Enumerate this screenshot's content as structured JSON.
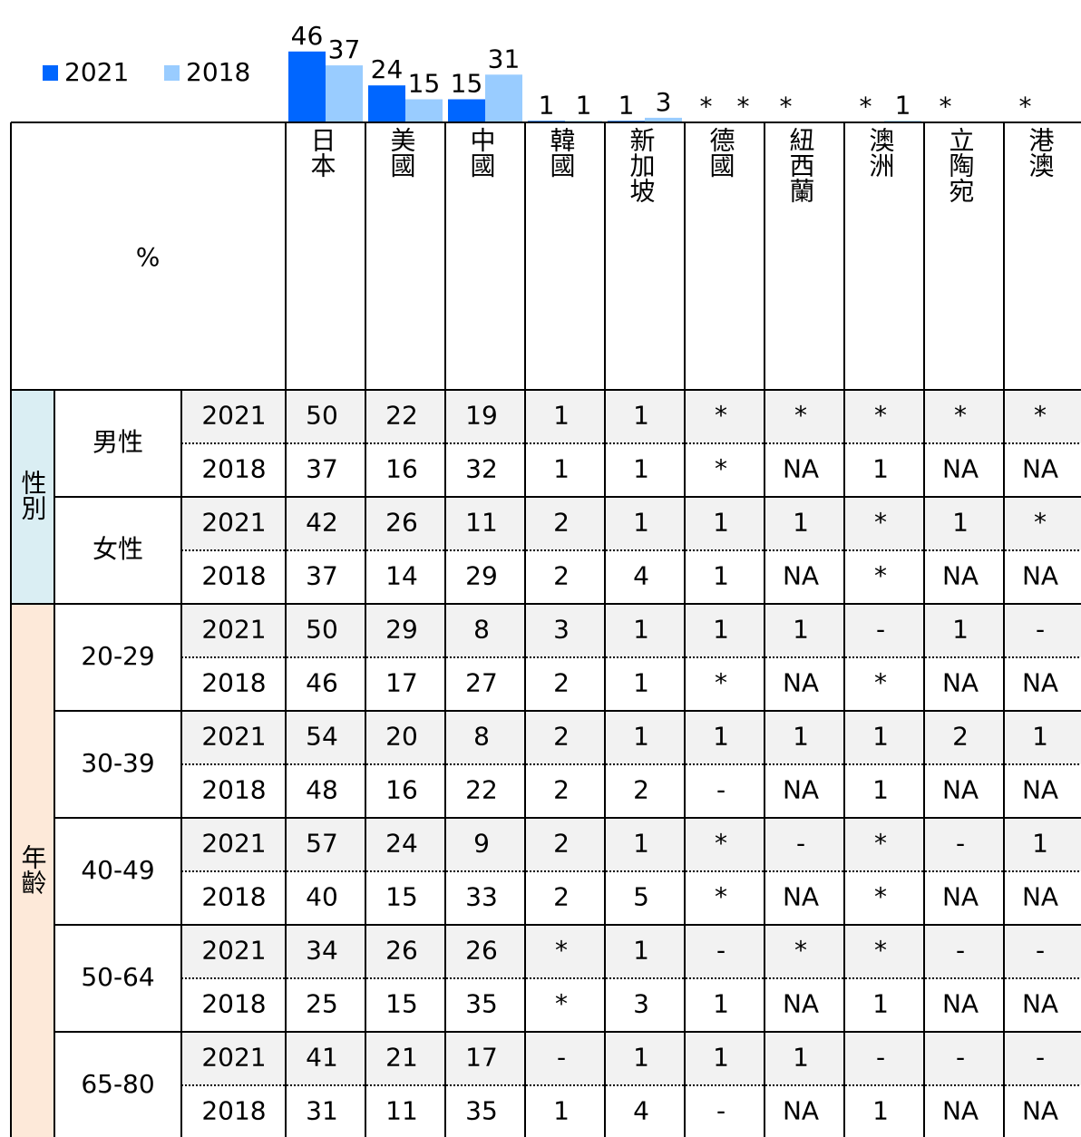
{
  "chart_data": {
    "type": "bar",
    "categories": [
      "日本",
      "美國",
      "中國",
      "韓國",
      "新加坡",
      "德國",
      "紐西蘭",
      "澳洲",
      "立陶宛",
      "港澳"
    ],
    "series": [
      {
        "name": "2021",
        "color": "#0066ff",
        "values": [
          46,
          24,
          15,
          1,
          1,
          null,
          null,
          null,
          null,
          null
        ],
        "value_labels": [
          "46",
          "24",
          "15",
          "1",
          "1",
          "*",
          "*",
          "*",
          "*",
          "*"
        ]
      },
      {
        "name": "2018",
        "color": "#99ccff",
        "values": [
          37,
          15,
          31,
          1,
          3,
          null,
          null,
          1,
          null,
          null
        ],
        "value_labels": [
          "37",
          "15",
          "31",
          "1",
          "3",
          "*",
          null,
          "1",
          null,
          null
        ]
      }
    ]
  },
  "table": {
    "corner": "%",
    "groups": [
      {
        "label": "性別",
        "color": "#daeef3",
        "subgroups": [
          {
            "label": "男性",
            "rows": [
              {
                "year": "2021",
                "cells": [
                  "50",
                  "22",
                  "19",
                  "1",
                  "1",
                  "*",
                  "*",
                  "*",
                  "*",
                  "*"
                ]
              },
              {
                "year": "2018",
                "cells": [
                  "37",
                  "16",
                  "32",
                  "1",
                  "1",
                  "*",
                  "NA",
                  "1",
                  "NA",
                  "NA"
                ]
              }
            ]
          },
          {
            "label": "女性",
            "rows": [
              {
                "year": "2021",
                "cells": [
                  "42",
                  "26",
                  "11",
                  "2",
                  "1",
                  "1",
                  "1",
                  "*",
                  "1",
                  "*"
                ]
              },
              {
                "year": "2018",
                "cells": [
                  "37",
                  "14",
                  "29",
                  "2",
                  "4",
                  "1",
                  "NA",
                  "*",
                  "NA",
                  "NA"
                ]
              }
            ]
          }
        ]
      },
      {
        "label": "年齡",
        "color": "#fde9d9",
        "subgroups": [
          {
            "label": "20-29",
            "rows": [
              {
                "year": "2021",
                "cells": [
                  "50",
                  "29",
                  "8",
                  "3",
                  "1",
                  "1",
                  "1",
                  "-",
                  "1",
                  "-"
                ]
              },
              {
                "year": "2018",
                "cells": [
                  "46",
                  "17",
                  "27",
                  "2",
                  "1",
                  "*",
                  "NA",
                  "*",
                  "NA",
                  "NA"
                ]
              }
            ]
          },
          {
            "label": "30-39",
            "rows": [
              {
                "year": "2021",
                "cells": [
                  "54",
                  "20",
                  "8",
                  "2",
                  "1",
                  "1",
                  "1",
                  "1",
                  "2",
                  "1"
                ]
              },
              {
                "year": "2018",
                "cells": [
                  "48",
                  "16",
                  "22",
                  "2",
                  "2",
                  "-",
                  "NA",
                  "1",
                  "NA",
                  "NA"
                ]
              }
            ]
          },
          {
            "label": "40-49",
            "rows": [
              {
                "year": "2021",
                "cells": [
                  "57",
                  "24",
                  "9",
                  "2",
                  "1",
                  "*",
                  "-",
                  "*",
                  "-",
                  "1"
                ]
              },
              {
                "year": "2018",
                "cells": [
                  "40",
                  "15",
                  "33",
                  "2",
                  "5",
                  "*",
                  "NA",
                  "*",
                  "NA",
                  "NA"
                ]
              }
            ]
          },
          {
            "label": "50-64",
            "rows": [
              {
                "year": "2021",
                "cells": [
                  "34",
                  "26",
                  "26",
                  "*",
                  "1",
                  "-",
                  "*",
                  "*",
                  "-",
                  "-"
                ]
              },
              {
                "year": "2018",
                "cells": [
                  "25",
                  "15",
                  "35",
                  "*",
                  "3",
                  "1",
                  "NA",
                  "1",
                  "NA",
                  "NA"
                ]
              }
            ]
          },
          {
            "label": "65-80",
            "rows": [
              {
                "year": "2021",
                "cells": [
                  "41",
                  "21",
                  "17",
                  "-",
                  "1",
                  "1",
                  "1",
                  "-",
                  "-",
                  "-"
                ]
              },
              {
                "year": "2018",
                "cells": [
                  "31",
                  "11",
                  "35",
                  "1",
                  "4",
                  "-",
                  "NA",
                  "1",
                  "NA",
                  "NA"
                ]
              }
            ]
          }
        ]
      }
    ]
  }
}
